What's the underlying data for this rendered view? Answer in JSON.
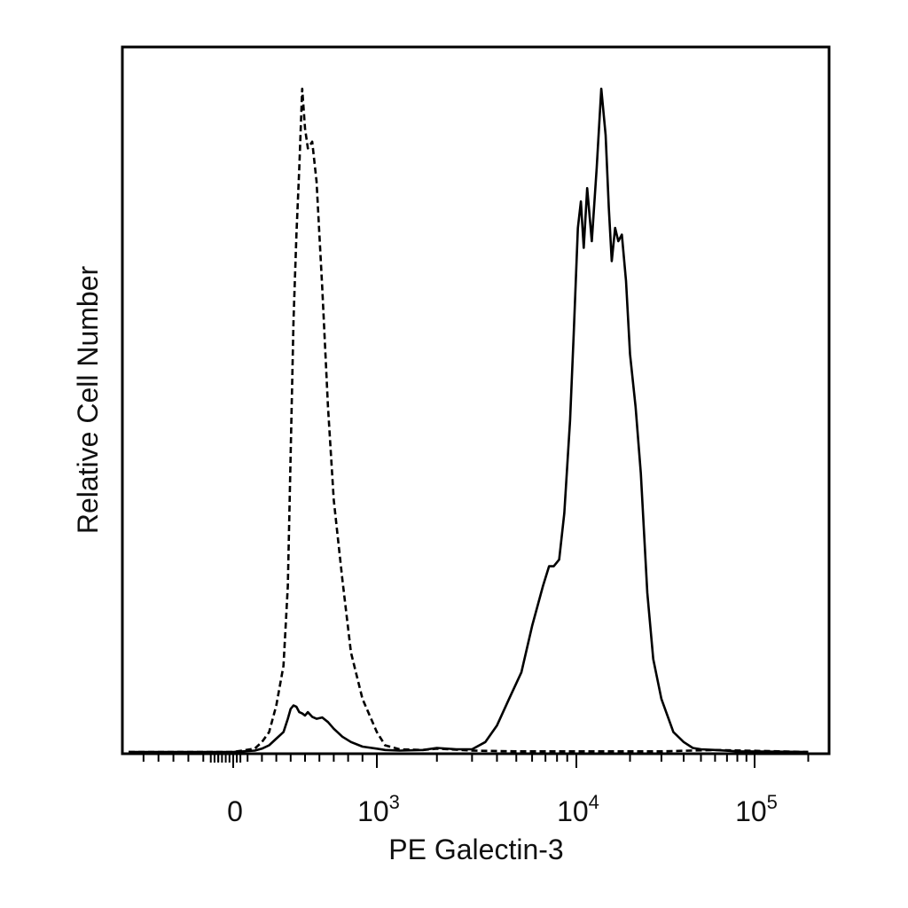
{
  "chart_data": {
    "type": "line",
    "title": "",
    "xlabel": "PE Galectin-3",
    "ylabel": "Relative Cell Number",
    "x_scale": "biexponential",
    "xlim": [
      -700,
      200000
    ],
    "ylim": [
      0,
      100
    ],
    "grid": false,
    "legend": "none",
    "x_tick_labels": [
      {
        "value": 0,
        "base": "0",
        "exp": ""
      },
      {
        "value": 1000,
        "base": "10",
        "exp": "3"
      },
      {
        "value": 10000,
        "base": "10",
        "exp": "4"
      },
      {
        "value": 100000,
        "base": "10",
        "exp": "5"
      }
    ],
    "series": [
      {
        "style": "dashed",
        "x": [
          -700,
          0,
          150,
          200,
          250,
          300,
          350,
          380,
          400,
          420,
          440,
          460,
          480,
          500,
          520,
          550,
          580,
          620,
          660,
          700,
          760,
          820,
          900,
          1000,
          1100,
          1300,
          1700,
          2000,
          3000,
          5000,
          10000,
          30000,
          60000,
          200000
        ],
        "y": [
          0,
          0,
          0.5,
          1.5,
          3,
          7,
          13,
          25,
          45,
          65,
          78,
          88,
          100,
          94,
          91,
          92,
          86,
          70,
          52,
          38,
          26,
          15,
          8,
          3,
          1,
          0.4,
          0.3,
          0.5,
          0.2,
          0.1,
          0.1,
          0.1,
          0.3,
          0
        ]
      },
      {
        "style": "solid",
        "x": [
          -700,
          0,
          150,
          200,
          250,
          300,
          350,
          380,
          400,
          420,
          440,
          460,
          480,
          500,
          520,
          550,
          580,
          620,
          660,
          700,
          760,
          820,
          900,
          1000,
          1100,
          1300,
          1700,
          2000,
          2500,
          3000,
          3500,
          4000,
          4600,
          5300,
          6000,
          6800,
          7300,
          7700,
          8200,
          8700,
          9300,
          9700,
          10200,
          10600,
          11000,
          11500,
          12200,
          13000,
          13800,
          14600,
          15200,
          15800,
          16500,
          17200,
          18000,
          19000,
          20000,
          21500,
          23000,
          25000,
          27000,
          30000,
          35000,
          40000,
          45000,
          50000,
          60000,
          80000,
          200000
        ],
        "y": [
          0,
          0,
          0.2,
          0.5,
          1,
          2,
          3,
          5,
          6.5,
          7,
          6.8,
          6,
          5.8,
          5.5,
          6,
          5.3,
          5,
          5.2,
          4.5,
          3.5,
          2.3,
          1.5,
          0.8,
          0.5,
          0.3,
          0.2,
          0.3,
          0.6,
          0.4,
          0.4,
          1.5,
          4,
          8,
          12,
          19,
          25,
          28,
          28,
          29,
          36,
          50,
          63,
          79,
          83,
          76,
          85,
          77,
          88,
          100,
          93,
          82,
          74,
          79,
          77,
          78,
          71,
          60,
          52,
          42,
          24,
          14,
          8,
          3,
          1.5,
          0.6,
          0.4,
          0.3,
          0.1,
          0
        ]
      }
    ]
  }
}
